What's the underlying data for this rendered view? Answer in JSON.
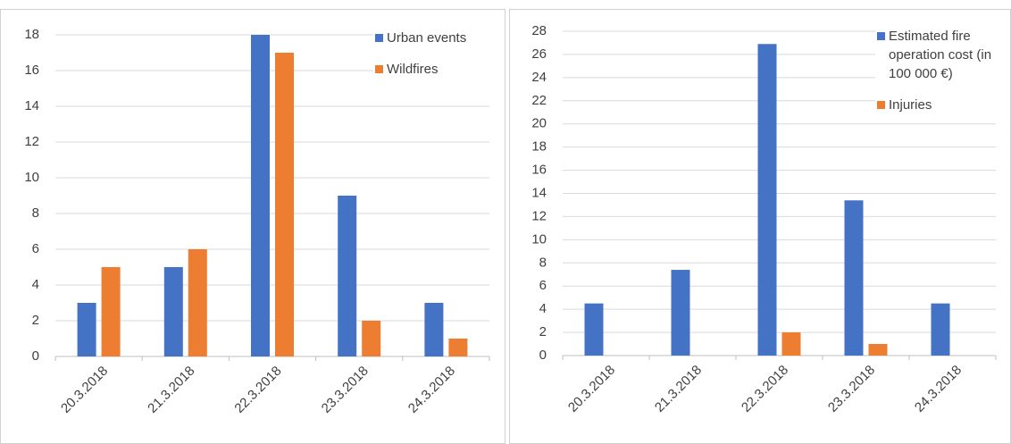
{
  "chart_data": [
    {
      "type": "bar",
      "categories": [
        "20.3.2018",
        "21.3.2018",
        "22.3.2018",
        "23.3.2018",
        "24.3.2018"
      ],
      "series": [
        {
          "name": "Urban events",
          "color": "#4472c4",
          "values": [
            3,
            5,
            18,
            9,
            3
          ]
        },
        {
          "name": "Wildfires",
          "color": "#ed7d31",
          "values": [
            5,
            6,
            17,
            2,
            1
          ]
        }
      ],
      "ylim": [
        0,
        18
      ],
      "yticks": [
        0,
        2,
        4,
        6,
        8,
        10,
        12,
        14,
        16,
        18
      ],
      "grid": true,
      "legend": "top-right"
    },
    {
      "type": "bar",
      "categories": [
        "20.3.2018",
        "21.3.2018",
        "22.3.2018",
        "23.3.2018",
        "24.3.2018"
      ],
      "series": [
        {
          "name": "Estimated fire operation cost (in 100 000 €)",
          "color": "#4472c4",
          "values": [
            4.5,
            7.4,
            26.9,
            13.4,
            4.5
          ]
        },
        {
          "name": "Injuries",
          "color": "#ed7d31",
          "values": [
            0,
            0,
            2,
            1,
            0
          ]
        }
      ],
      "ylim": [
        0,
        28
      ],
      "yticks": [
        0,
        2,
        4,
        6,
        8,
        10,
        12,
        14,
        16,
        18,
        20,
        22,
        24,
        26,
        28
      ],
      "grid": true,
      "legend": "top-right"
    }
  ]
}
